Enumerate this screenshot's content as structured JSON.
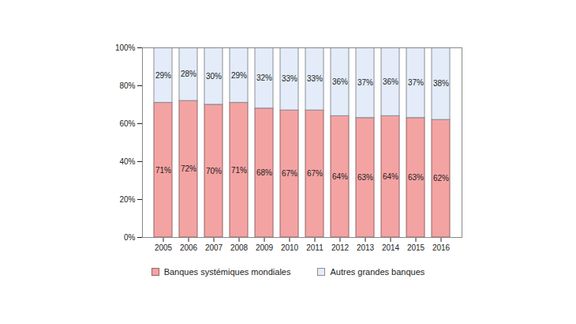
{
  "chart_data": {
    "type": "bar",
    "stacked": true,
    "data_labels": true,
    "grid": false,
    "legend": "bottom",
    "categories": [
      "2005",
      "2006",
      "2007",
      "2008",
      "2009",
      "2010",
      "2011",
      "2012",
      "2013",
      "2014",
      "2015",
      "2016"
    ],
    "ylim": [
      0,
      100
    ],
    "yticks": [
      {
        "value": 0,
        "label": "0%"
      },
      {
        "value": 20,
        "label": "20%"
      },
      {
        "value": 40,
        "label": "40%"
      },
      {
        "value": 60,
        "label": "60%"
      },
      {
        "value": 80,
        "label": "80%"
      },
      {
        "value": 100,
        "label": "100%"
      }
    ],
    "series": [
      {
        "name": "Banques systémiques mondiales",
        "color": "#f4a3a3",
        "values": [
          71,
          72,
          70,
          71,
          68,
          67,
          67,
          64,
          63,
          64,
          63,
          62
        ],
        "value_labels": [
          "71%",
          "72%",
          "70%",
          "71%",
          "68%",
          "67%",
          "67%",
          "64%",
          "63%",
          "64%",
          "63%",
          "62%"
        ]
      },
      {
        "name": "Autres grandes banques",
        "color": "#e3ecf8",
        "values": [
          29,
          28,
          30,
          29,
          32,
          33,
          33,
          36,
          37,
          36,
          37,
          38
        ],
        "value_labels": [
          "29%",
          "28%",
          "30%",
          "29%",
          "32%",
          "33%",
          "33%",
          "36%",
          "37%",
          "36%",
          "37%",
          "38%"
        ]
      }
    ]
  }
}
